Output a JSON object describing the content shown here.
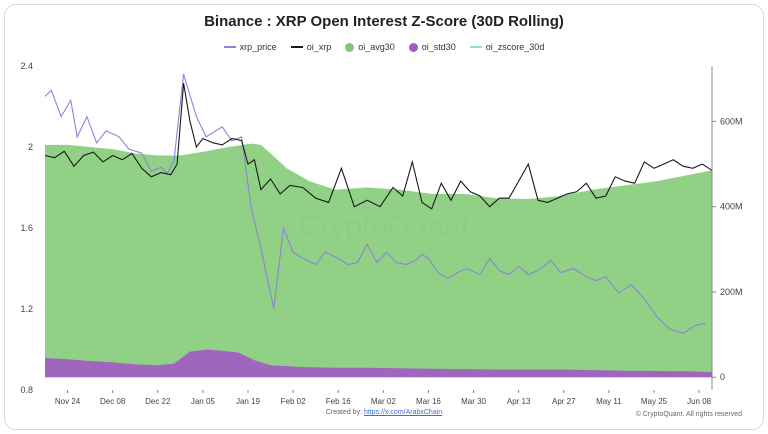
{
  "chart_data": {
    "type": "line",
    "title": "Binance : XRP Open Interest Z-Score (30D Rolling)",
    "legend_placement": "top-center",
    "grid": false,
    "x_ticks": [
      "Nov 24",
      "Dec 08",
      "Dec 22",
      "Jan 05",
      "Jan 19",
      "Feb 02",
      "Feb 16",
      "Mar 02",
      "Mar 16",
      "Mar 30",
      "Apr 13",
      "Apr 27",
      "May 11",
      "May 25",
      "Jun 08"
    ],
    "y_left_ticks": [
      "0.8",
      "1.2",
      "1.6",
      "2",
      "2.4"
    ],
    "y_left_range": [
      0.8,
      2.4
    ],
    "y_right_ticks": [
      "0",
      "200M",
      "400M",
      "600M"
    ],
    "y_right_range": [
      -30,
      730
    ],
    "series": [
      {
        "name": "xrp_price",
        "axis": "left",
        "style": "line",
        "color": "#8c84d6",
        "x": [
          0,
          2,
          5,
          8,
          10,
          13,
          16,
          19,
          23,
          26,
          30,
          33,
          36,
          38,
          40,
          43,
          47,
          50,
          53,
          55,
          58,
          61,
          64,
          67,
          71,
          74,
          77,
          80,
          84,
          87,
          91,
          94,
          97,
          100,
          103,
          106,
          109,
          112,
          115,
          117,
          119,
          122,
          125,
          128,
          131,
          135,
          138,
          141,
          144,
          147,
          150,
          153,
          157,
          160,
          164,
          168,
          171,
          174,
          178,
          182,
          186,
          190,
          194,
          198,
          202,
          205
        ],
        "values": [
          2.25,
          2.28,
          2.15,
          2.23,
          2.05,
          2.15,
          2.02,
          2.08,
          2.05,
          1.99,
          1.97,
          1.88,
          1.9,
          1.87,
          1.93,
          2.36,
          2.15,
          2.05,
          2.08,
          2.1,
          2.03,
          2.05,
          1.7,
          1.5,
          1.2,
          1.6,
          1.48,
          1.45,
          1.42,
          1.48,
          1.45,
          1.42,
          1.43,
          1.52,
          1.43,
          1.48,
          1.43,
          1.42,
          1.44,
          1.47,
          1.45,
          1.38,
          1.35,
          1.38,
          1.4,
          1.37,
          1.45,
          1.39,
          1.37,
          1.41,
          1.37,
          1.39,
          1.44,
          1.38,
          1.4,
          1.36,
          1.34,
          1.36,
          1.28,
          1.32,
          1.25,
          1.16,
          1.1,
          1.08,
          1.12,
          1.13
        ]
      },
      {
        "name": "oi_xrp",
        "axis": "right",
        "style": "line",
        "color": "#1a1a1a",
        "x": [
          0,
          3,
          6,
          9,
          12,
          15,
          18,
          21,
          24,
          27,
          30,
          33,
          36,
          39,
          41,
          43,
          45,
          47,
          49,
          52,
          55,
          58,
          61,
          63,
          65,
          67,
          70,
          73,
          76,
          80,
          84,
          88,
          92,
          96,
          100,
          104,
          108,
          111,
          114,
          117,
          120,
          123,
          126,
          129,
          132,
          135,
          138,
          141,
          144,
          147,
          150,
          153,
          156,
          159,
          162,
          165,
          168,
          171,
          174,
          177,
          180,
          183,
          186,
          189,
          192,
          195,
          198,
          201,
          204,
          207
        ],
        "values": [
          520,
          515,
          530,
          495,
          520,
          528,
          505,
          520,
          510,
          525,
          490,
          470,
          480,
          475,
          500,
          690,
          600,
          540,
          560,
          550,
          545,
          560,
          555,
          500,
          510,
          440,
          465,
          430,
          450,
          445,
          420,
          410,
          490,
          400,
          415,
          400,
          445,
          425,
          505,
          410,
          395,
          455,
          415,
          460,
          435,
          425,
          400,
          420,
          420,
          460,
          500,
          415,
          410,
          420,
          430,
          435,
          455,
          420,
          425,
          470,
          460,
          455,
          505,
          490,
          500,
          510,
          495,
          490,
          500,
          485
        ]
      },
      {
        "name": "oi_avg30",
        "axis": "right",
        "style": "area",
        "color": "#7ec971",
        "x": [
          0,
          7,
          14,
          21,
          28,
          35,
          42,
          50,
          57,
          64,
          67,
          70,
          75,
          82,
          90,
          100,
          110,
          120,
          130,
          140,
          150,
          160,
          170,
          180,
          190,
          200,
          207
        ],
        "values": [
          545,
          545,
          540,
          535,
          525,
          520,
          520,
          530,
          540,
          548,
          545,
          525,
          490,
          460,
          440,
          445,
          440,
          430,
          430,
          420,
          418,
          425,
          440,
          450,
          460,
          475,
          485
        ]
      },
      {
        "name": "oi_std30",
        "axis": "right",
        "style": "area",
        "color": "#a259c4",
        "x": [
          0,
          7,
          14,
          21,
          28,
          35,
          40,
          45,
          50,
          55,
          60,
          65,
          70,
          80,
          90,
          100,
          120,
          140,
          160,
          180,
          200,
          207
        ],
        "values": [
          45,
          42,
          38,
          35,
          30,
          28,
          32,
          60,
          65,
          62,
          58,
          40,
          28,
          24,
          22,
          22,
          20,
          18,
          18,
          15,
          14,
          12
        ]
      },
      {
        "name": "oi_zscore_30d",
        "axis": "left",
        "style": "line",
        "color": "#8fe0d8",
        "x": [],
        "values": []
      }
    ],
    "annotations": [
      "CryptoQuant",
      "Created by: ",
      "https://x.com/ArabxChain",
      "© CryptoQuant. All rights reserved"
    ]
  }
}
